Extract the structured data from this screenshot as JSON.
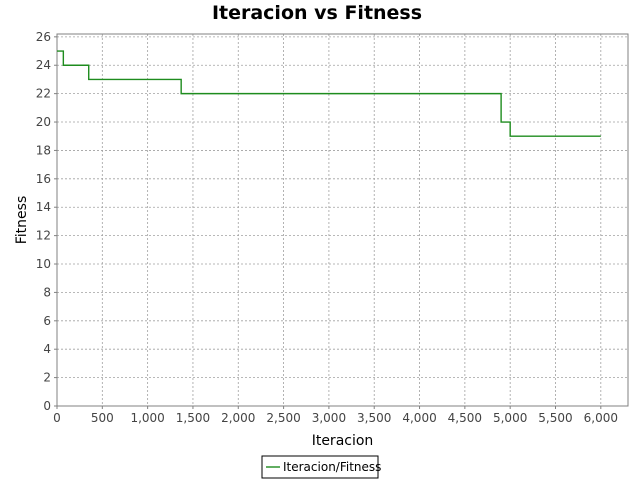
{
  "chart_data": {
    "type": "line",
    "title": "Iteracion vs Fitness",
    "xlabel": "Iteracion",
    "ylabel": "Fitness",
    "xlim": [
      0,
      6300
    ],
    "ylim": [
      0,
      26.2
    ],
    "xticks": [
      0,
      500,
      1000,
      1500,
      2000,
      2500,
      3000,
      3500,
      4000,
      4500,
      5000,
      5500,
      6000
    ],
    "xtick_labels": [
      "0",
      "500",
      "1,000",
      "1,500",
      "2,000",
      "2,500",
      "3,000",
      "3,500",
      "4,000",
      "4,500",
      "5,000",
      "5,500",
      "6,000"
    ],
    "yticks": [
      0,
      2,
      4,
      6,
      8,
      10,
      12,
      14,
      16,
      18,
      20,
      22,
      24,
      26
    ],
    "grid": true,
    "legend_position": "bottom-center",
    "series": [
      {
        "name": "Iteracion/Fitness",
        "color": "#1e8c1e",
        "step": true,
        "x": [
          0,
          70,
          70,
          350,
          350,
          1370,
          1370,
          4900,
          4900,
          5000,
          5000,
          6000
        ],
        "y": [
          25,
          25,
          24,
          24,
          23,
          23,
          22,
          22,
          20,
          20,
          19,
          19
        ]
      }
    ]
  }
}
